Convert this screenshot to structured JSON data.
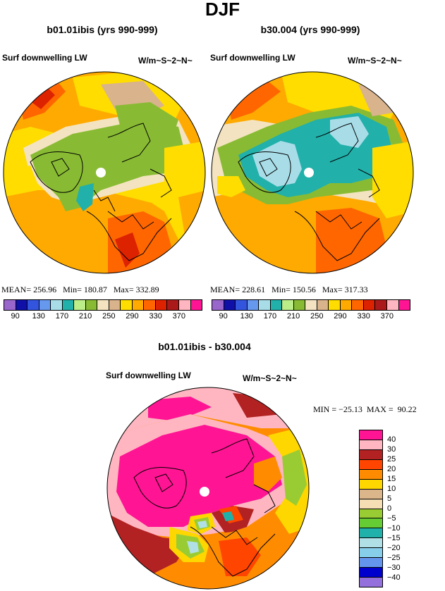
{
  "figure": {
    "main_title": "DJF",
    "panels": [
      {
        "title": "b01.01ibis (yrs 990-999)",
        "variable": "Surf downwelling LW",
        "units": "W/m~S~2~N~",
        "stats": {
          "mean_label": "MEAN=",
          "mean": "256.96",
          "min_label": "Min=",
          "min": "180.87",
          "max_label": "Max=",
          "max": "332.89"
        }
      },
      {
        "title": "b30.004 (yrs 990-999)",
        "variable": "Surf downwelling LW",
        "units": "W/m~S~2~N~",
        "stats": {
          "mean_label": "MEAN=",
          "mean": "228.61",
          "min_label": "Min=",
          "min": "150.56",
          "max_label": "Max=",
          "max": "317.33"
        }
      }
    ],
    "diff_panel": {
      "title": "b01.01ibis - b30.004",
      "variable": "Surf downwelling LW",
      "units": "W/m~S~2~N~",
      "minmax": "MIN = −25.13  MAX =  90.22"
    }
  },
  "colorbar_top": {
    "colors": [
      "#9966cc",
      "#1010a8",
      "#3355dd",
      "#6699ee",
      "#a8dde8",
      "#22b0aa",
      "#bbee88",
      "#88bb33",
      "#f3e3c0",
      "#d9b38c",
      "#ffdd00",
      "#ffaa00",
      "#ff6600",
      "#dd2200",
      "#aa1a1a",
      "#ffb6c1",
      "#ff1493"
    ],
    "labels": [
      "90",
      "130",
      "170",
      "210",
      "250",
      "290",
      "330",
      "370"
    ]
  },
  "colorbar_diff": {
    "colors": [
      "#ff1493",
      "#ffb6c1",
      "#b22222",
      "#ff4500",
      "#ff8c00",
      "#ffd700",
      "#dbb68a",
      "#f5deb3",
      "#99cc33",
      "#66cc33",
      "#20b2aa",
      "#b0e0e6",
      "#87ceeb",
      "#6495ed",
      "#0000cd",
      "#9370db"
    ],
    "labels": [
      "40",
      "30",
      "25",
      "20",
      "15",
      "10",
      "5",
      "0",
      "−5",
      "−10",
      "−15",
      "−20",
      "−25",
      "−30",
      "−40"
    ]
  }
}
